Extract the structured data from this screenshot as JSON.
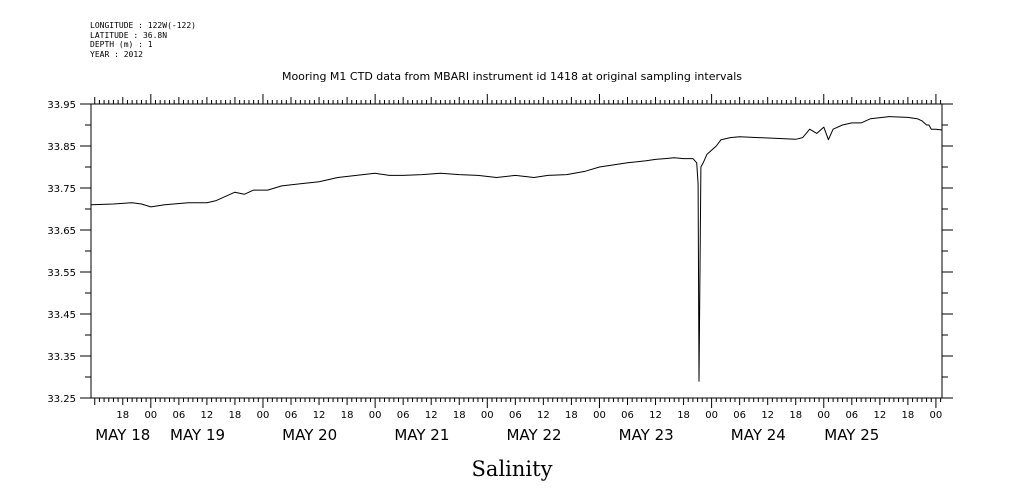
{
  "metadata": {
    "longitude": "LONGITUDE : 122W(-122)",
    "latitude": "LATITUDE : 36.8N",
    "depth": "DEPTH (m) : 1",
    "year": "YEAR : 2012"
  },
  "chart_data": {
    "type": "line",
    "title": "Mooring M1 CTD data from MBARI instrument id 1418 at original sampling intervals",
    "xlabel": "Salinity",
    "ylabel": "",
    "ylim": [
      33.25,
      33.95
    ],
    "y_tick_labels": [
      "33.95",
      "33.85",
      "33.75",
      "33.65",
      "33.55",
      "33.45",
      "33.35",
      "33.25"
    ],
    "y_ticks": [
      33.95,
      33.85,
      33.75,
      33.65,
      33.55,
      33.45,
      33.35,
      33.25
    ],
    "xlim_hours": [
      -12.8,
      169.3
    ],
    "x_hour_labels": [
      {
        "hour": -6,
        "label": "18"
      },
      {
        "hour": 0,
        "label": "00"
      },
      {
        "hour": 6,
        "label": "06"
      },
      {
        "hour": 12,
        "label": "12"
      },
      {
        "hour": 18,
        "label": "18"
      },
      {
        "hour": 24,
        "label": "00"
      },
      {
        "hour": 30,
        "label": "06"
      },
      {
        "hour": 36,
        "label": "12"
      },
      {
        "hour": 42,
        "label": "18"
      },
      {
        "hour": 48,
        "label": "00"
      },
      {
        "hour": 54,
        "label": "06"
      },
      {
        "hour": 60,
        "label": "12"
      },
      {
        "hour": 66,
        "label": "18"
      },
      {
        "hour": 72,
        "label": "00"
      },
      {
        "hour": 78,
        "label": "06"
      },
      {
        "hour": 84,
        "label": "12"
      },
      {
        "hour": 90,
        "label": "18"
      },
      {
        "hour": 96,
        "label": "00"
      },
      {
        "hour": 102,
        "label": "06"
      },
      {
        "hour": 108,
        "label": "12"
      },
      {
        "hour": 114,
        "label": "18"
      },
      {
        "hour": 120,
        "label": "00"
      },
      {
        "hour": 126,
        "label": "06"
      },
      {
        "hour": 132,
        "label": "12"
      },
      {
        "hour": 138,
        "label": "18"
      },
      {
        "hour": 144,
        "label": "00"
      },
      {
        "hour": 150,
        "label": "06"
      },
      {
        "hour": 156,
        "label": "12"
      },
      {
        "hour": 162,
        "label": "18"
      },
      {
        "hour": 168,
        "label": "00"
      }
    ],
    "x_day_labels": [
      {
        "hour": -6,
        "label": "MAY 18"
      },
      {
        "hour": 10,
        "label": "MAY 19"
      },
      {
        "hour": 34,
        "label": "MAY 20"
      },
      {
        "hour": 58,
        "label": "MAY 21"
      },
      {
        "hour": 82,
        "label": "MAY 22"
      },
      {
        "hour": 106,
        "label": "MAY 23"
      },
      {
        "hour": 130,
        "label": "MAY 24"
      },
      {
        "hour": 150,
        "label": "MAY 25"
      }
    ],
    "grid": false,
    "series": [
      {
        "color": "#000000",
        "x": [
          -12.8,
          -8,
          -4,
          -2,
          0,
          3,
          8,
          12,
          14,
          18,
          20,
          22,
          25,
          28,
          32,
          36,
          40,
          44,
          48,
          51,
          54,
          58,
          62,
          66,
          70,
          74,
          78,
          82,
          85,
          89,
          93,
          96,
          99,
          102,
          106,
          108,
          110,
          112,
          114,
          116,
          116.8,
          117.1,
          117.3,
          117.5,
          117.7,
          118.2,
          119,
          121,
          122,
          124,
          126,
          130,
          134,
          138,
          139.5,
          141,
          142.5,
          144,
          145,
          146,
          148,
          150,
          152,
          154,
          158,
          162,
          164,
          165,
          166,
          166.5,
          167,
          168,
          169.3
        ],
        "y": [
          33.71,
          33.712,
          33.715,
          33.712,
          33.705,
          33.71,
          33.715,
          33.715,
          33.72,
          33.74,
          33.735,
          33.745,
          33.745,
          33.755,
          33.76,
          33.765,
          33.775,
          33.78,
          33.785,
          33.78,
          33.78,
          33.782,
          33.785,
          33.782,
          33.78,
          33.775,
          33.78,
          33.775,
          33.78,
          33.782,
          33.79,
          33.8,
          33.805,
          33.81,
          33.815,
          33.818,
          33.82,
          33.822,
          33.82,
          33.82,
          33.81,
          33.76,
          33.29,
          33.53,
          33.8,
          33.81,
          33.83,
          33.85,
          33.865,
          33.87,
          33.872,
          33.87,
          33.868,
          33.866,
          33.87,
          33.89,
          33.88,
          33.895,
          33.865,
          33.89,
          33.9,
          33.905,
          33.905,
          33.915,
          33.92,
          33.918,
          33.915,
          33.91,
          33.9,
          33.9,
          33.89,
          33.89,
          33.888
        ]
      }
    ]
  }
}
